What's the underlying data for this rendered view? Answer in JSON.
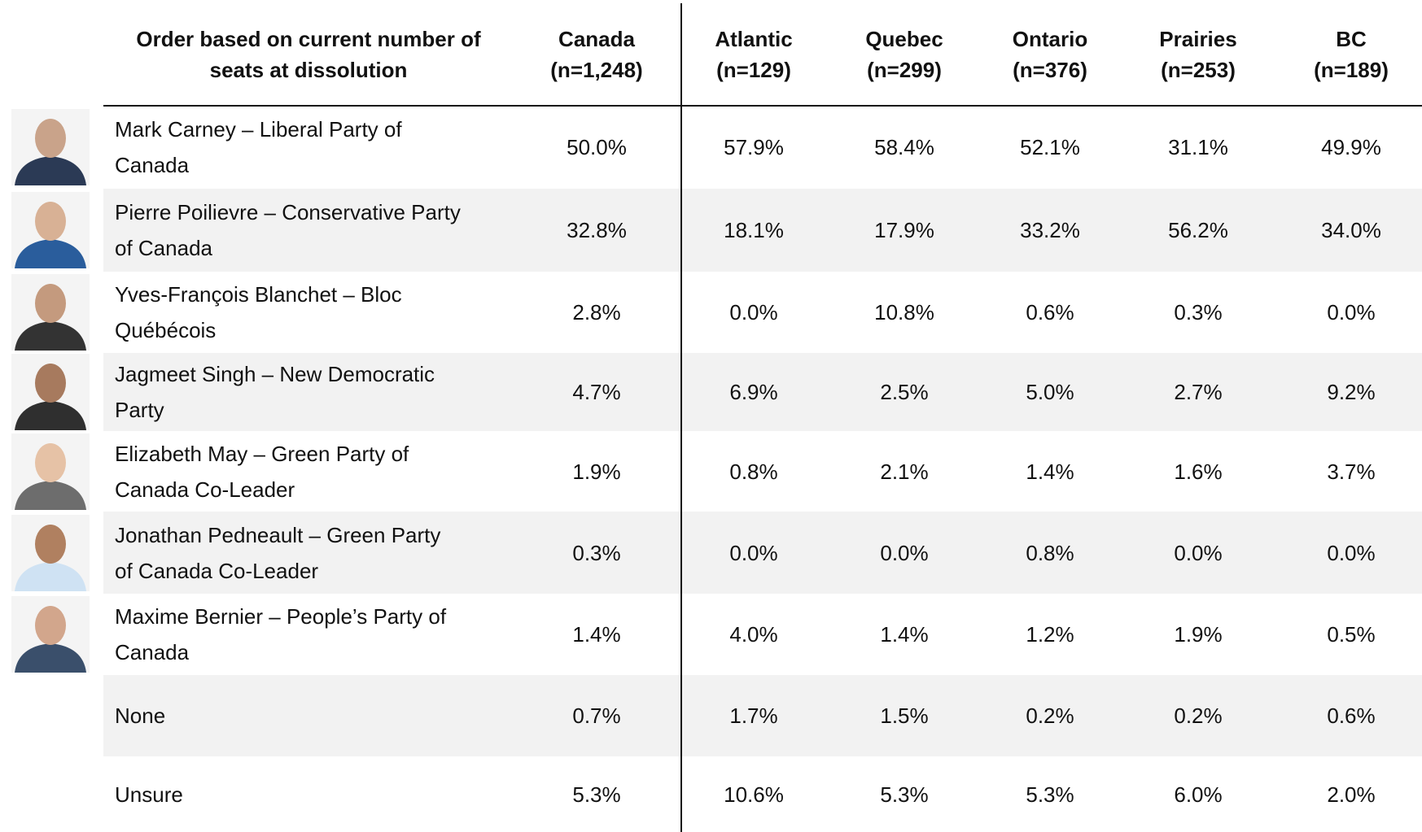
{
  "table": {
    "columns": [
      {
        "lines": [
          "Order based on current number of",
          "seats at dissolution"
        ]
      },
      {
        "lines": [
          "Canada",
          "(n=1,248)"
        ]
      },
      {
        "lines": [
          "Atlantic",
          "(n=129)"
        ]
      },
      {
        "lines": [
          "Quebec",
          "(n=299)"
        ]
      },
      {
        "lines": [
          "Ontario",
          "(n=376)"
        ]
      },
      {
        "lines": [
          "Prairies",
          "(n=253)"
        ]
      },
      {
        "lines": [
          "BC",
          "(n=189)"
        ]
      }
    ],
    "rows": [
      {
        "label": [
          "Mark Carney – Liberal Party of",
          "Canada"
        ],
        "values": [
          "50.0%",
          "57.9%",
          "58.4%",
          "52.1%",
          "31.1%",
          "49.9%"
        ]
      },
      {
        "label": [
          "Pierre Poilievre – Conservative Party",
          "of Canada"
        ],
        "values": [
          "32.8%",
          "18.1%",
          "17.9%",
          "33.2%",
          "56.2%",
          "34.0%"
        ]
      },
      {
        "label": [
          "Yves-François Blanchet – Bloc",
          "Québécois"
        ],
        "values": [
          "2.8%",
          "0.0%",
          "10.8%",
          "0.6%",
          "0.3%",
          "0.0%"
        ]
      },
      {
        "label": [
          "Jagmeet Singh – New Democratic",
          "Party"
        ],
        "values": [
          "4.7%",
          "6.9%",
          "2.5%",
          "5.0%",
          "2.7%",
          "9.2%"
        ]
      },
      {
        "label": [
          "Elizabeth May – Green Party of",
          "Canada Co-Leader"
        ],
        "values": [
          "1.9%",
          "0.8%",
          "2.1%",
          "1.4%",
          "1.6%",
          "3.7%"
        ]
      },
      {
        "label": [
          "Jonathan Pedneault – Green Party",
          "of Canada Co-Leader"
        ],
        "values": [
          "0.3%",
          "0.0%",
          "0.0%",
          "0.8%",
          "0.0%",
          "0.0%"
        ]
      },
      {
        "label": [
          "Maxime Bernier – People’s Party of",
          "Canada"
        ],
        "values": [
          "1.4%",
          "4.0%",
          "1.4%",
          "1.2%",
          "1.9%",
          "0.5%"
        ]
      },
      {
        "label": [
          "None"
        ],
        "values": [
          "0.7%",
          "1.7%",
          "1.5%",
          "0.2%",
          "0.2%",
          "0.6%"
        ]
      },
      {
        "label": [
          "Unsure"
        ],
        "values": [
          "5.3%",
          "10.6%",
          "5.3%",
          "5.3%",
          "6.0%",
          "2.0%"
        ]
      }
    ]
  }
}
